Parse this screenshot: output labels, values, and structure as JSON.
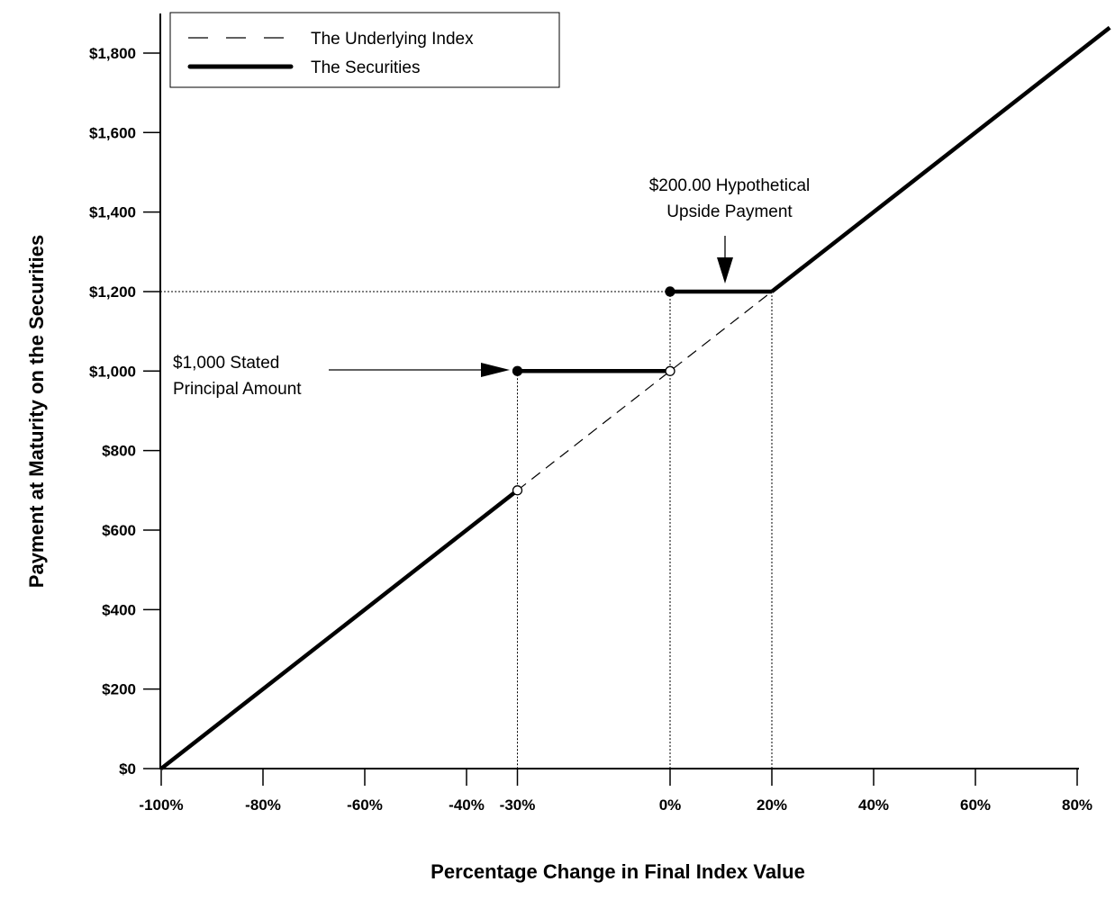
{
  "chart_data": {
    "type": "line",
    "title": "",
    "xlabel": "Percentage Change in Final Index Value",
    "ylabel": "Payment at Maturity on the Securities",
    "xlim": [
      -100,
      86.4
    ],
    "ylim": [
      0,
      1864
    ],
    "grid": false,
    "x_ticks": [
      {
        "value": -100,
        "label": "-100%"
      },
      {
        "value": -80,
        "label": "-80%"
      },
      {
        "value": -60,
        "label": "-60%"
      },
      {
        "value": -40,
        "label": "-40%"
      },
      {
        "value": -30,
        "label": "-30%"
      },
      {
        "value": 0,
        "label": "0%"
      },
      {
        "value": 20,
        "label": "20%"
      },
      {
        "value": 40,
        "label": "40%"
      },
      {
        "value": 60,
        "label": "60%"
      },
      {
        "value": 80,
        "label": "80%"
      }
    ],
    "y_ticks": [
      {
        "value": 0,
        "label": "$0"
      },
      {
        "value": 200,
        "label": "$200"
      },
      {
        "value": 400,
        "label": "$400"
      },
      {
        "value": 600,
        "label": "$600"
      },
      {
        "value": 800,
        "label": "$800"
      },
      {
        "value": 1000,
        "label": "$1,000"
      },
      {
        "value": 1200,
        "label": "$1,200"
      },
      {
        "value": 1400,
        "label": "$1,400"
      },
      {
        "value": 1600,
        "label": "$1,600"
      },
      {
        "value": 1800,
        "label": "$1,800"
      }
    ],
    "legend": {
      "placement": "top-left",
      "entries": [
        {
          "name": "The Underlying Index",
          "style": "dashed"
        },
        {
          "name": "The Securities",
          "style": "solid-thick"
        }
      ]
    },
    "series": [
      {
        "name": "The Underlying Index",
        "style": "dashed",
        "points": [
          [
            -30,
            700
          ],
          [
            20,
            1200
          ]
        ]
      },
      {
        "name": "The Securities",
        "style": "solid",
        "segments": [
          [
            [
              -100,
              0
            ],
            [
              -30,
              700
            ]
          ],
          [
            [
              -30,
              1000
            ],
            [
              0,
              1000
            ]
          ],
          [
            [
              0,
              1200
            ],
            [
              20,
              1200
            ]
          ],
          [
            [
              20,
              1200
            ],
            [
              86.4,
              1864
            ]
          ]
        ]
      }
    ],
    "markers": [
      {
        "x": -30,
        "y": 1000,
        "filled": true
      },
      {
        "x": 0,
        "y": 1200,
        "filled": true
      },
      {
        "x": -30,
        "y": 700,
        "filled": false
      },
      {
        "x": 0,
        "y": 1000,
        "filled": false
      }
    ],
    "reference_lines": {
      "vertical": [
        {
          "x": -30,
          "to_y": 1000
        },
        {
          "x": 0,
          "to_y": 1200
        },
        {
          "x": 20,
          "to_y": 1200
        }
      ],
      "horizontal": [
        {
          "y": 1200,
          "to_x": 0
        }
      ]
    },
    "annotations": [
      {
        "lines": [
          "$1,000 Stated",
          "Principal Amount"
        ],
        "points_to": [
          -30,
          1000
        ]
      },
      {
        "lines": [
          "$200.00 Hypothetical",
          "Upside Payment"
        ],
        "points_to": [
          10,
          1200
        ]
      }
    ]
  }
}
